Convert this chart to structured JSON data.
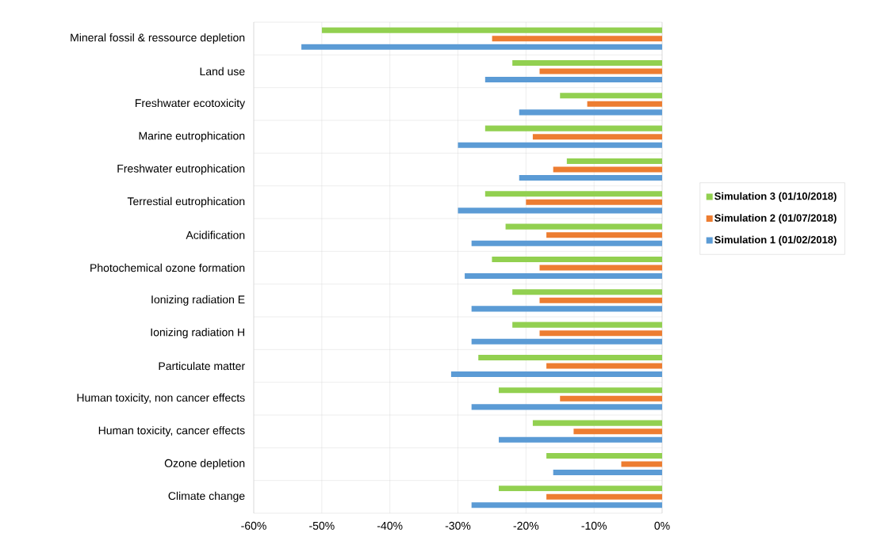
{
  "chart_data": {
    "type": "bar",
    "orientation": "horizontal",
    "categories": [
      "Mineral fossil & ressource depletion",
      "Land use",
      "Freshwater ecotoxicity",
      "Marine  eutrophication",
      "Freshwater eutrophication",
      "Terrestial eutrophication",
      "Acidification",
      "Photochemical ozone formation",
      "Ionizing radiation E",
      "Ionizing radiation H",
      "Particulate matter",
      "Human toxicity, non cancer effects",
      "Human toxicity, cancer effects",
      "Ozone depletion",
      "Climate change"
    ],
    "series": [
      {
        "name": "Simulation 3 (01/10/2018)",
        "color": "#92d050",
        "values": [
          -50,
          -22,
          -15,
          -26,
          -14,
          -26,
          -23,
          -25,
          -22,
          -22,
          -27,
          -24,
          -19,
          -17,
          -24
        ]
      },
      {
        "name": "Simulation 2 (01/07/2018)",
        "color": "#ed7d31",
        "values": [
          -25,
          -18,
          -11,
          -19,
          -16,
          -20,
          -17,
          -18,
          -18,
          -18,
          -17,
          -15,
          -13,
          -6,
          -17
        ]
      },
      {
        "name": "Simulation 1 (01/02/2018)",
        "color": "#5b9bd5",
        "values": [
          -53,
          -26,
          -21,
          -30,
          -21,
          -30,
          -28,
          -29,
          -28,
          -28,
          -31,
          -28,
          -24,
          -16,
          -28
        ]
      }
    ],
    "xlim": [
      -60,
      0
    ],
    "xticks": [
      {
        "value": -60,
        "label": "-60%"
      },
      {
        "value": -50,
        "label": "-50%"
      },
      {
        "value": -40,
        "label": "-40%"
      },
      {
        "value": -30,
        "label": "-30%"
      },
      {
        "value": -20,
        "label": "-20%"
      },
      {
        "value": -10,
        "label": "-10%"
      },
      {
        "value": 0,
        "label": "0%"
      }
    ],
    "grid": true,
    "legend": "right"
  }
}
